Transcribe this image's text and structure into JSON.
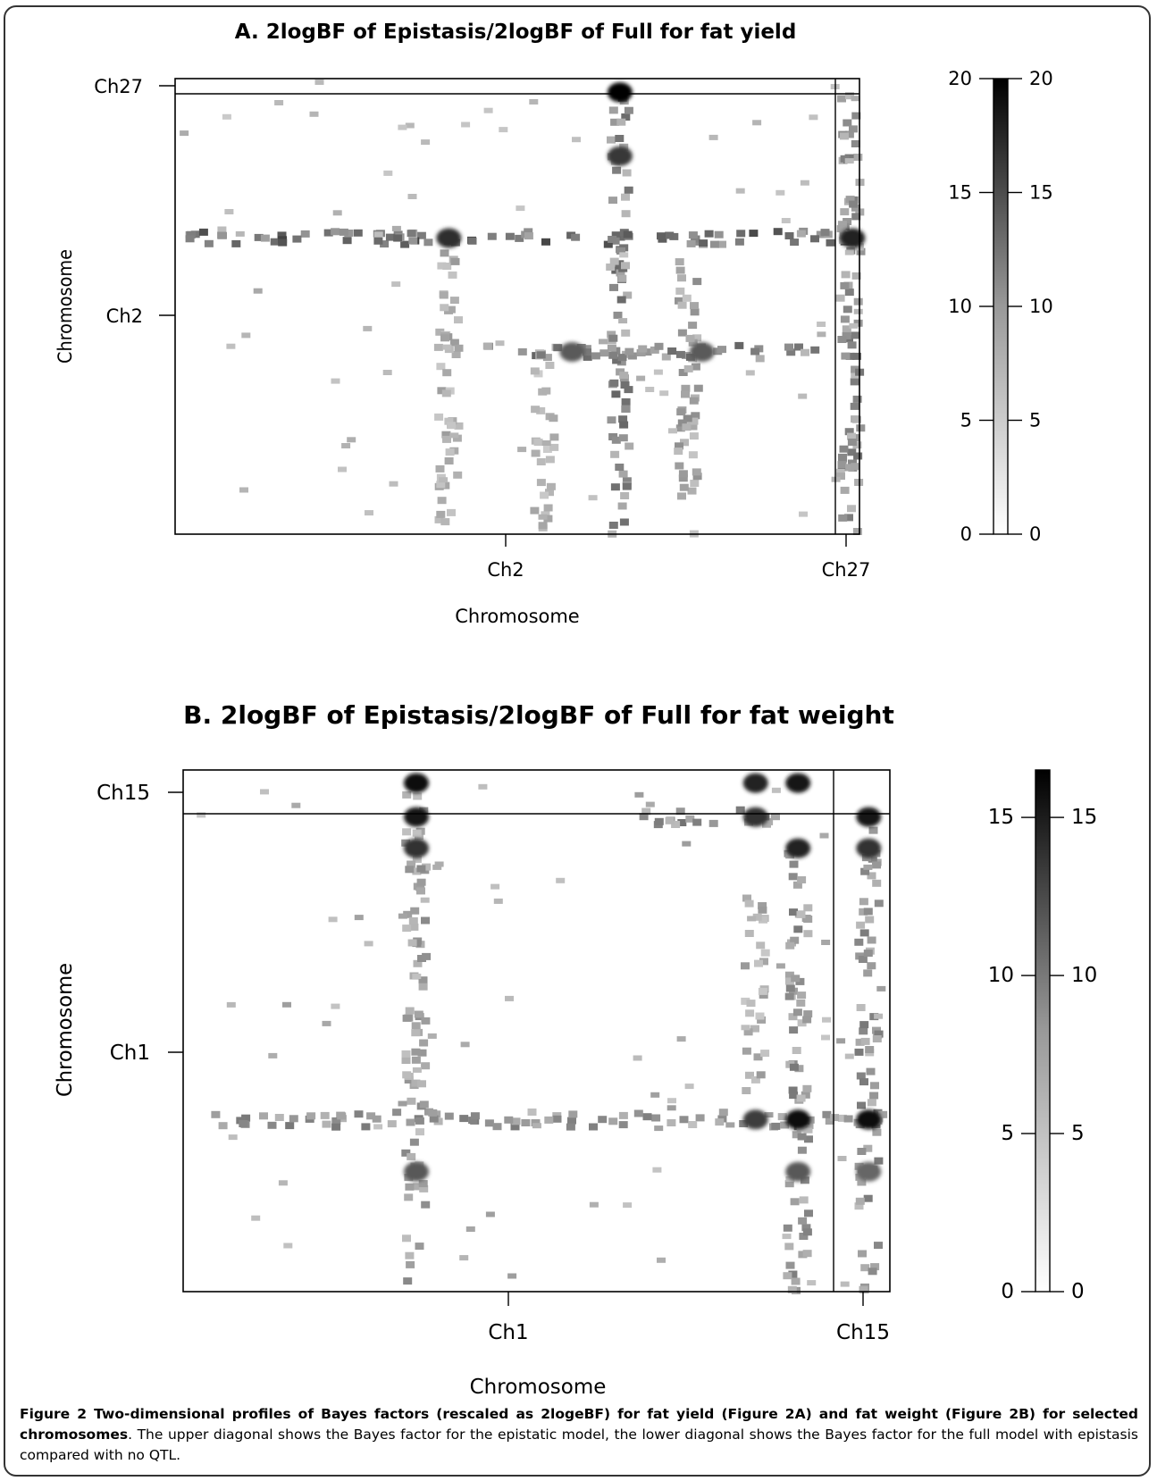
{
  "chart_data": [
    {
      "type": "heatmap",
      "title": "A. 2logBF of Epistasis/2logBF of Full for fat yield",
      "xlabel": "Chromosome",
      "ylabel": "Chromosome",
      "x_ticks": [
        "Ch2",
        "Ch27"
      ],
      "y_ticks": [
        "Ch27",
        "Ch2"
      ],
      "colorbar": {
        "min": 0,
        "max": 20,
        "ticks": [
          0,
          5,
          10,
          15,
          20
        ]
      },
      "features": [
        {
          "orientation": "column",
          "pos": 0.65,
          "from": 0.0,
          "to": 0.97,
          "value": 10,
          "note": "strong vertical band"
        },
        {
          "orientation": "column",
          "pos": 0.4,
          "from": 0.0,
          "to": 0.65,
          "value": 6
        },
        {
          "orientation": "column",
          "pos": 0.75,
          "from": 0.0,
          "to": 0.6,
          "value": 7
        },
        {
          "orientation": "column",
          "pos": 0.54,
          "from": 0.0,
          "to": 0.4,
          "value": 5
        },
        {
          "orientation": "row",
          "pos": 0.65,
          "from": 0.02,
          "to": 1.0,
          "value": 13,
          "note": "strong horizontal band"
        },
        {
          "orientation": "row",
          "pos": 0.4,
          "from": 0.45,
          "to": 1.0,
          "value": 10
        },
        {
          "orientation": "column",
          "pos": 0.987,
          "from": 0.0,
          "to": 0.97,
          "value": 9,
          "note": "Ch27 column"
        }
      ],
      "hotspots": [
        {
          "x": 0.65,
          "y": 0.97,
          "value": 20
        },
        {
          "x": 0.65,
          "y": 0.83,
          "value": 15
        },
        {
          "x": 0.4,
          "y": 0.65,
          "value": 16
        },
        {
          "x": 0.58,
          "y": 0.4,
          "value": 12
        },
        {
          "x": 0.77,
          "y": 0.4,
          "value": 12
        },
        {
          "x": 0.99,
          "y": 0.65,
          "value": 17
        }
      ]
    },
    {
      "type": "heatmap",
      "title": "B. 2logBF of Epistasis/2logBF of Full for fat weight",
      "xlabel": "Chromosome",
      "ylabel": "Chromosome",
      "x_ticks": [
        "Ch1",
        "Ch15"
      ],
      "y_ticks": [
        "Ch15",
        "Ch1"
      ],
      "colorbar": {
        "min": 0,
        "max": 16.5,
        "ticks": [
          0,
          5,
          10,
          15
        ]
      },
      "features": [
        {
          "orientation": "row",
          "pos": 0.33,
          "from": 0.03,
          "to": 0.99,
          "value": 7,
          "note": "horizontal band"
        },
        {
          "orientation": "column",
          "pos": 0.33,
          "from": 0.0,
          "to": 0.96,
          "value": 6
        },
        {
          "orientation": "column",
          "pos": 0.87,
          "from": 0.0,
          "to": 0.85,
          "value": 7
        },
        {
          "orientation": "column",
          "pos": 0.97,
          "from": 0.0,
          "to": 0.9,
          "value": 7
        },
        {
          "orientation": "column",
          "pos": 0.81,
          "from": 0.38,
          "to": 0.77,
          "value": 5
        },
        {
          "orientation": "row",
          "pos": 0.91,
          "from": 0.65,
          "to": 0.84,
          "value": 8
        }
      ],
      "hotspots": [
        {
          "x": 0.33,
          "y": 0.975,
          "value": 16
        },
        {
          "x": 0.33,
          "y": 0.91,
          "value": 15
        },
        {
          "x": 0.33,
          "y": 0.85,
          "value": 13
        },
        {
          "x": 0.87,
          "y": 0.975,
          "value": 15
        },
        {
          "x": 0.81,
          "y": 0.975,
          "value": 14
        },
        {
          "x": 0.81,
          "y": 0.91,
          "value": 13
        },
        {
          "x": 0.87,
          "y": 0.85,
          "value": 14
        },
        {
          "x": 0.97,
          "y": 0.91,
          "value": 15
        },
        {
          "x": 0.97,
          "y": 0.85,
          "value": 13
        },
        {
          "x": 0.87,
          "y": 0.33,
          "value": 16
        },
        {
          "x": 0.97,
          "y": 0.33,
          "value": 16
        },
        {
          "x": 0.81,
          "y": 0.33,
          "value": 12
        },
        {
          "x": 0.33,
          "y": 0.23,
          "value": 10
        },
        {
          "x": 0.87,
          "y": 0.23,
          "value": 10
        },
        {
          "x": 0.97,
          "y": 0.23,
          "value": 9
        }
      ]
    }
  ],
  "caption": {
    "label": "Figure 2",
    "bold_text": " Two-dimensional profiles of Bayes factors (rescaled as 2logeBF) for fat yield (Figure 2A) and fat weight (Figure 2B) for selected chromosomes",
    "text": ". The upper diagonal shows the Bayes factor for the epistatic model, the lower diagonal shows the Bayes factor for the full model with epistasis compared with no QTL."
  }
}
